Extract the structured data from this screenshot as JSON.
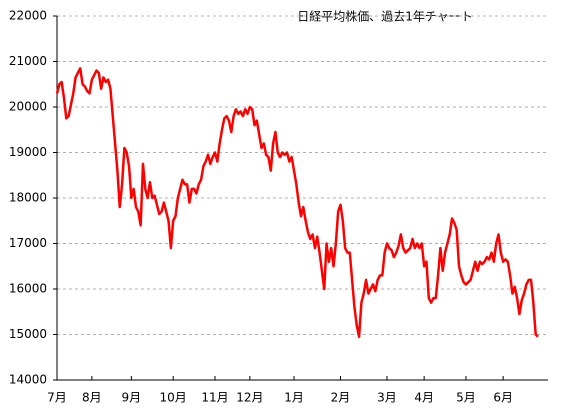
{
  "chart_data": {
    "type": "line",
    "title": "日経平均株価、過去1年チャート",
    "categories": [
      "7月",
      null,
      null,
      null,
      null,
      null,
      null,
      null,
      null,
      null,
      null,
      null,
      null,
      null,
      null,
      "8月",
      null,
      null,
      null,
      null,
      null,
      null,
      null,
      null,
      null,
      null,
      null,
      null,
      null,
      null,
      null,
      null,
      "9月",
      null,
      null,
      null,
      null,
      null,
      null,
      null,
      null,
      null,
      null,
      null,
      null,
      null,
      null,
      null,
      null,
      null,
      "10月",
      null,
      null,
      null,
      null,
      null,
      null,
      null,
      null,
      null,
      null,
      null,
      null,
      null,
      null,
      null,
      null,
      null,
      "11月",
      null,
      null,
      null,
      null,
      null,
      null,
      null,
      null,
      null,
      null,
      null,
      null,
      null,
      null,
      "12月",
      null,
      null,
      null,
      null,
      null,
      null,
      null,
      null,
      null,
      null,
      null,
      null,
      null,
      null,
      null,
      null,
      null,
      null,
      "1月",
      null,
      null,
      null,
      null,
      null,
      null,
      null,
      null,
      null,
      null,
      null,
      null,
      null,
      null,
      null,
      null,
      null,
      null,
      null,
      "2月",
      null,
      null,
      null,
      null,
      null,
      null,
      null,
      null,
      null,
      null,
      null,
      null,
      null,
      null,
      null,
      null,
      null,
      null,
      null,
      "3月",
      null,
      null,
      null,
      null,
      null,
      null,
      null,
      null,
      null,
      null,
      null,
      null,
      null,
      null,
      null,
      "4月",
      null,
      null,
      null,
      null,
      null,
      null,
      null,
      null,
      null,
      null,
      null,
      null,
      null,
      null,
      null,
      null,
      null,
      "5月",
      null,
      null,
      null,
      null,
      null,
      null,
      null,
      null,
      null,
      null,
      null,
      null,
      null,
      null,
      null,
      "6月",
      null,
      null,
      null,
      null,
      null,
      null,
      null,
      null,
      null,
      null,
      null,
      null,
      null,
      null,
      null
    ],
    "values": [
      20300,
      20500,
      20550,
      20200,
      19750,
      19800,
      20050,
      20300,
      20650,
      20750,
      20850,
      20500,
      20450,
      20350,
      20300,
      20600,
      20700,
      20800,
      20750,
      20400,
      20650,
      20550,
      20600,
      20400,
      19800,
      19200,
      18600,
      17800,
      18300,
      19100,
      19000,
      18700,
      18000,
      18200,
      17800,
      17700,
      17400,
      18750,
      18200,
      18000,
      18350,
      18000,
      18050,
      17850,
      17650,
      17700,
      17900,
      17700,
      17500,
      16900,
      17500,
      17600,
      18000,
      18200,
      18400,
      18300,
      18300,
      17900,
      18200,
      18200,
      18100,
      18300,
      18400,
      18700,
      18800,
      18950,
      18750,
      18900,
      19000,
      18800,
      19200,
      19500,
      19750,
      19800,
      19700,
      19450,
      19800,
      19950,
      19850,
      19900,
      19800,
      19950,
      19850,
      20000,
      19950,
      19600,
      19700,
      19400,
      19100,
      19200,
      18950,
      18900,
      18600,
      19200,
      19450,
      19000,
      18900,
      19000,
      18950,
      19000,
      18800,
      18900,
      18600,
      18300,
      17900,
      17600,
      17800,
      17500,
      17250,
      17100,
      17200,
      16900,
      17150,
      16800,
      16400,
      16000,
      17000,
      16600,
      16900,
      16500,
      17000,
      17700,
      17850,
      17500,
      16900,
      16800,
      16800,
      16200,
      15600,
      15200,
      14950,
      15700,
      15900,
      16200,
      15900,
      16000,
      16100,
      15950,
      16200,
      16300,
      16300,
      16800,
      17000,
      16900,
      16850,
      16700,
      16800,
      16950,
      17200,
      16900,
      16800,
      16850,
      16900,
      17100,
      16900,
      17000,
      16900,
      17000,
      16500,
      16600,
      15800,
      15700,
      15800,
      15800,
      16300,
      16900,
      16400,
      16800,
      17000,
      17200,
      17550,
      17450,
      17300,
      16500,
      16300,
      16150,
      16100,
      16150,
      16200,
      16400,
      16600,
      16400,
      16600,
      16550,
      16600,
      16700,
      16650,
      16800,
      16600,
      17000,
      17200,
      16800,
      16600,
      16650,
      16600,
      16300,
      15900,
      16050,
      15800,
      15450,
      15750,
      15900,
      16100,
      16200,
      16200,
      15700,
      15000,
      14950
    ],
    "color": "#ff0000",
    "ylim": [
      14000,
      22000
    ],
    "yticks": [
      14000,
      15000,
      16000,
      17000,
      18000,
      19000,
      20000,
      21000,
      22000
    ],
    "grid": true
  }
}
